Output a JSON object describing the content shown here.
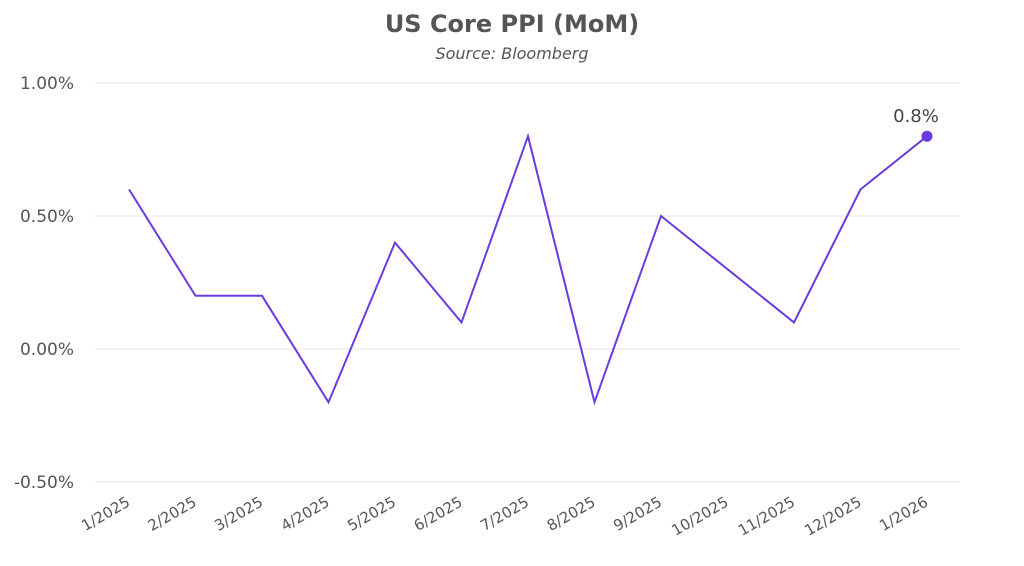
{
  "chart_data": {
    "type": "line",
    "title": "US Core PPI (MoM)",
    "subtitle": "Source: Bloomberg",
    "xlabel": "",
    "ylabel": "",
    "categories": [
      "1/2025",
      "2/2025",
      "3/2025",
      "4/2025",
      "5/2025",
      "6/2025",
      "7/2025",
      "8/2025",
      "9/2025",
      "10/2025",
      "11/2025",
      "12/2025",
      "1/2026"
    ],
    "series": [
      {
        "name": "US Core PPI (MoM)",
        "values": [
          0.6,
          0.2,
          0.2,
          -0.2,
          0.4,
          0.1,
          0.8,
          -0.2,
          0.5,
          0.3,
          0.1,
          0.6,
          0.8
        ],
        "color": "#6a3be0"
      }
    ],
    "ylim": [
      -0.5,
      1.0
    ],
    "yticks": [
      -0.5,
      0.0,
      0.5,
      1.0
    ],
    "ytick_labels": [
      "-0.50%",
      "0.00%",
      "0.50%",
      "1.00%"
    ],
    "grid": true,
    "last_point_label": "0.8%"
  }
}
